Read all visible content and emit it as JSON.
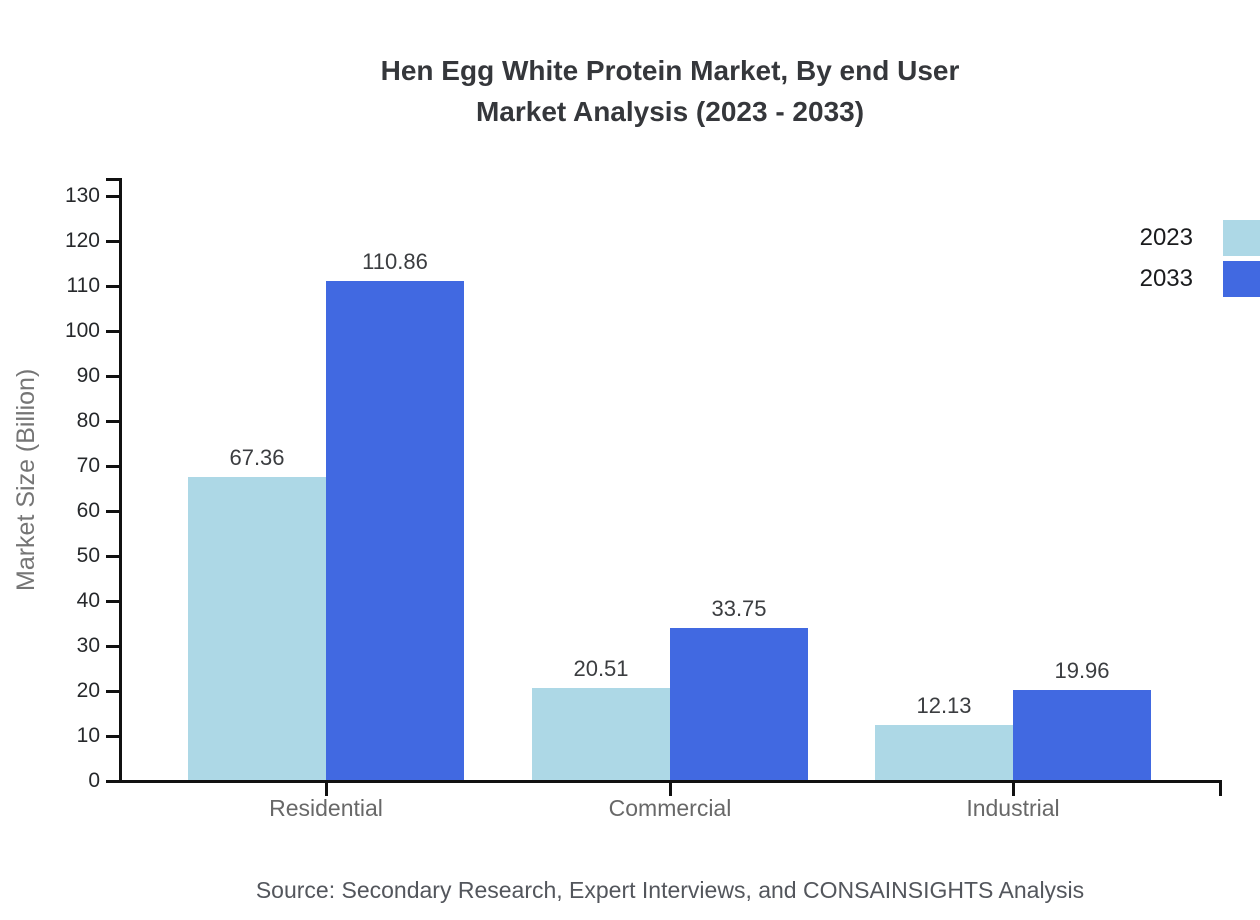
{
  "chart_data": {
    "type": "bar",
    "title": "Hen Egg White Protein Market, By end User Market Analysis (2023 - 2033)",
    "title_lines": [
      "Hen Egg White Protein Market, By end User",
      "Market Analysis (2023 - 2033)"
    ],
    "categories": [
      "Residential",
      "Commercial",
      "Industrial"
    ],
    "series": [
      {
        "name": "2023",
        "color": "#ADD8E6",
        "values": [
          67.36,
          20.51,
          12.13
        ]
      },
      {
        "name": "2033",
        "color": "#4169E1",
        "values": [
          110.86,
          33.75,
          19.96
        ]
      }
    ],
    "xlabel": "",
    "ylabel": "Market Size (Billion)",
    "ylim": [
      0,
      130
    ],
    "ytick_step": 10,
    "grid": false,
    "legend_position": "top-right",
    "value_labels": true,
    "axis_color": "#111111"
  },
  "footer": {
    "source": "Source: Secondary Research, Expert Interviews, and CONSAINSIGHTS Analysis"
  }
}
